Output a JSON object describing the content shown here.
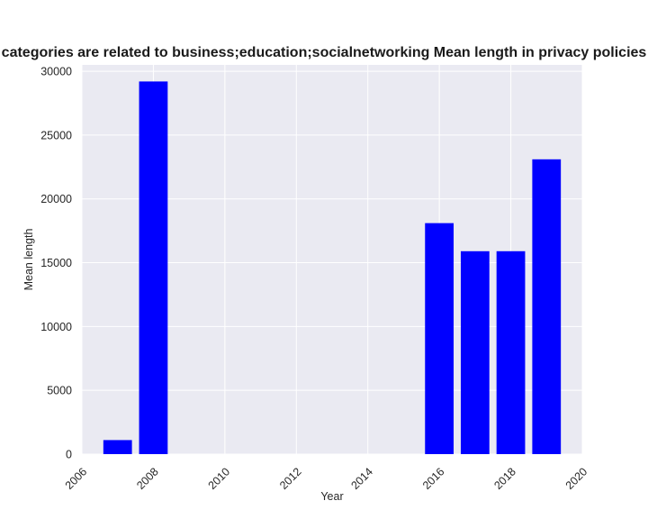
{
  "chart_data": {
    "type": "bar",
    "title": "categories are related to business;education;socialnetworking Mean length in privacy policies",
    "xlabel": "Year",
    "ylabel": "Mean length",
    "x": [
      2007,
      2008,
      2016,
      2017,
      2018,
      2019
    ],
    "values": [
      1100,
      29200,
      18100,
      15900,
      15900,
      23100
    ],
    "xlim": [
      2006,
      2020
    ],
    "ylim": [
      0,
      30500
    ],
    "xticks": [
      2006,
      2008,
      2010,
      2012,
      2014,
      2016,
      2018,
      2020
    ],
    "yticks": [
      0,
      5000,
      10000,
      15000,
      20000,
      25000,
      30000
    ],
    "bar_color": "#0000ff",
    "plot_background": "#eaeaf2",
    "grid_color": "#ffffff",
    "grid": true,
    "legend": "none"
  }
}
